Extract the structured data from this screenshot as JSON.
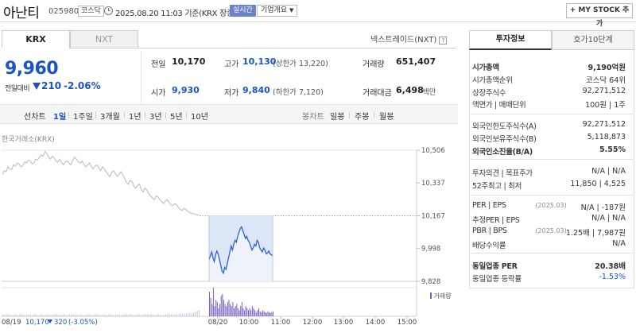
{
  "header": {
    "stock_name": "아난티",
    "stock_code": "025980",
    "market_badge": "코스닥",
    "time_text": "2025.08.20 11:03 기준(KRX 장중)",
    "realtime_label": "실시간",
    "company_label": "기업개요",
    "mystock_label": "+ MY STOCK 추가"
  },
  "tabs": {
    "krx": "KRX",
    "nxt": "NXT",
    "nextrade_link": "넥스트레이드(NXT)",
    "help": "?"
  },
  "price": {
    "current": "9,960",
    "change_label": "전일대비",
    "change_value": "210",
    "change_pct": "-2.06%",
    "direction": "down",
    "color": "#1a54c4"
  },
  "stats": {
    "prev_close": {
      "label": "전일",
      "value": "10,170"
    },
    "high": {
      "label": "고가",
      "value": "10,130",
      "extra": "(상한가 13,220)"
    },
    "volume": {
      "label": "거래량",
      "value": "651,407"
    },
    "open": {
      "label": "시가",
      "value": "9,930"
    },
    "low": {
      "label": "저가",
      "value": "9,840",
      "extra": "(하한가 7,120)"
    },
    "amount": {
      "label": "거래대금",
      "value": "6,498",
      "unit": "백만"
    }
  },
  "period_bar": {
    "chart_type_label": "선차트",
    "periods": [
      "1일",
      "1주일",
      "3개월",
      "1년",
      "3년",
      "5년",
      "10년"
    ],
    "active_period": "1일",
    "candle_label": "봉차트",
    "candle_periods": [
      "일봉",
      "주봉",
      "월봉"
    ]
  },
  "chart_data": {
    "type": "line",
    "source_label": "한국거래소(KRX)",
    "y_ticks": [
      "10,506",
      "10,337",
      "10,167",
      "9,998",
      "9,828"
    ],
    "ylim": [
      9828,
      10506
    ],
    "prev_close_line": 10167,
    "volume_label": "거래량",
    "x_labels": [
      "08/20",
      "10:00",
      "11:00",
      "12:00",
      "13:00",
      "14:00",
      "15:00"
    ],
    "prev_day_label": "08/19",
    "prev_day_close": "10,170",
    "prev_day_change": "320",
    "prev_day_pct": "(-3.05%)",
    "prev_day_series": [
      10380,
      10400,
      10395,
      10420,
      10410,
      10405,
      10430,
      10425,
      10440,
      10435,
      10420,
      10425,
      10445,
      10440,
      10455,
      10450,
      10435,
      10440,
      10460,
      10455,
      10470,
      10480,
      10475,
      10500,
      10490,
      10470,
      10460,
      10475,
      10465,
      10450,
      10445,
      10460,
      10440,
      10430,
      10445,
      10450,
      10440,
      10430,
      10455,
      10470,
      10460,
      10445,
      10440,
      10450,
      10435,
      10420,
      10430,
      10440,
      10420,
      10410,
      10425,
      10430,
      10415,
      10400,
      10420,
      10410,
      10395,
      10380,
      10370,
      10390,
      10400,
      10385,
      10370,
      10380,
      10395,
      10380,
      10360,
      10340,
      10330,
      10350,
      10345,
      10320,
      10310,
      10325,
      10330,
      10300,
      10290,
      10310,
      10300,
      10280,
      10270,
      10260,
      10250,
      10270,
      10265,
      10250,
      10240,
      10230,
      10245,
      10250,
      10235,
      10225,
      10220,
      10230,
      10225,
      10210,
      10200,
      10195,
      10205,
      10200,
      10190,
      10185,
      10180,
      10178,
      10175,
      10172,
      10170
    ],
    "today_series": [
      9940,
      9960,
      9980,
      9950,
      9930,
      9965,
      9985,
      9970,
      9940,
      9910,
      9880,
      9870,
      9900,
      9890,
      9920,
      9950,
      9980,
      10010,
      9990,
      10020,
      10040,
      10030,
      10060,
      10080,
      10100,
      10110,
      10090,
      10070,
      10050,
      10060,
      10040,
      10030,
      10010,
      9990,
      10000,
      10020,
      10010,
      10040,
      10030,
      10000,
      9990,
      9980,
      10000,
      9990,
      9970,
      9975,
      9985,
      9970,
      9965,
      9960
    ],
    "today_volume": [
      60,
      45,
      30,
      70,
      25,
      40,
      35,
      20,
      30,
      50,
      55,
      40,
      30,
      25,
      35,
      40,
      30,
      25,
      35,
      20,
      25,
      30,
      20,
      15,
      25,
      35,
      20,
      15,
      25,
      20,
      15,
      20,
      15,
      25,
      20,
      15,
      10,
      15,
      20,
      12,
      10,
      15,
      12,
      10,
      8,
      12,
      10,
      8,
      10,
      12
    ],
    "prev_volume": [
      5,
      4,
      6,
      5,
      4,
      3,
      4,
      5,
      3,
      4,
      6,
      5,
      3,
      4,
      5,
      4,
      3,
      5,
      4,
      3,
      4,
      5,
      3,
      4,
      5,
      4,
      3,
      4,
      5,
      6,
      4,
      3,
      4,
      5,
      4,
      3,
      5,
      4,
      6,
      5,
      4,
      3,
      5,
      4,
      3,
      4,
      5,
      4,
      3,
      4,
      6,
      5,
      4,
      3,
      4,
      5,
      3,
      4,
      5,
      4,
      3,
      4,
      5,
      4,
      3,
      4,
      6,
      5,
      4,
      5,
      4,
      3,
      4,
      5,
      4,
      3,
      4,
      5,
      6,
      4,
      5,
      4,
      3,
      4,
      5,
      4,
      3,
      4,
      5,
      6,
      5,
      4,
      5,
      4,
      6,
      5,
      7,
      6,
      5,
      8,
      7,
      9,
      8,
      10,
      12,
      14,
      16
    ]
  },
  "right_panel": {
    "tab_invest": "투자정보",
    "tab_quote": "호가10단계",
    "rows": [
      {
        "k": "시가총액",
        "v": "9,190억원",
        "bold": true
      },
      {
        "k": "시가총액순위",
        "v": "코스닥 64위"
      },
      {
        "k": "상장주식수",
        "v": "92,271,512"
      },
      {
        "k": "액면가 | 매매단위",
        "v": "100원 | 1주"
      },
      {
        "k": "외국인한도주식수(A)",
        "v": "92,271,512"
      },
      {
        "k": "외국인보유주식수(B)",
        "v": "5,118,873"
      },
      {
        "k": "외국인소진율(B/A)",
        "v": "5.55%",
        "bold": true
      },
      {
        "k": "투자의견 | 목표주가",
        "v": "N/A | N/A"
      },
      {
        "k": "52주최고 | 최저",
        "v": "11,850 | 4,525"
      },
      {
        "k": "PER | EPS",
        "sub": "(2025.03)",
        "v": "N/A | -187원"
      },
      {
        "k": "추정PER | EPS",
        "v": "N/A | N/A"
      },
      {
        "k": "PBR | BPS",
        "sub": "(2025.03)",
        "v": "1.25배 | 7,987원"
      },
      {
        "k": "배당수익률",
        "v": "N/A"
      },
      {
        "k": "동일업종 PER",
        "v": "20.38배",
        "bold": true
      },
      {
        "k": "동일업종 등락률",
        "v": "-1.53%",
        "blue": true
      }
    ]
  }
}
